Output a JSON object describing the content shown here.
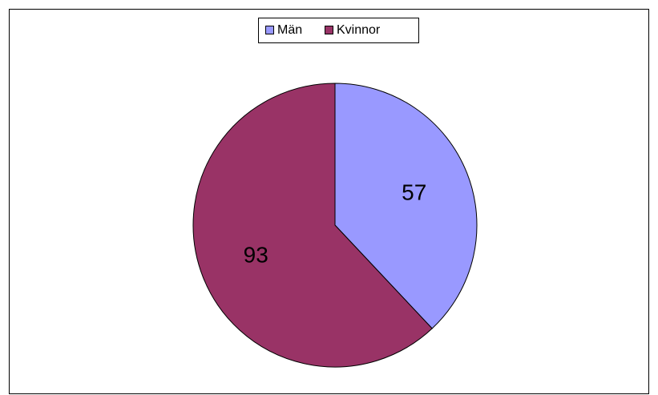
{
  "chart_data": {
    "type": "pie",
    "categories": [
      "Män",
      "Kvinnor"
    ],
    "values": [
      57,
      93
    ],
    "colors": [
      "#9999ff",
      "#993366"
    ],
    "legend": "top"
  }
}
